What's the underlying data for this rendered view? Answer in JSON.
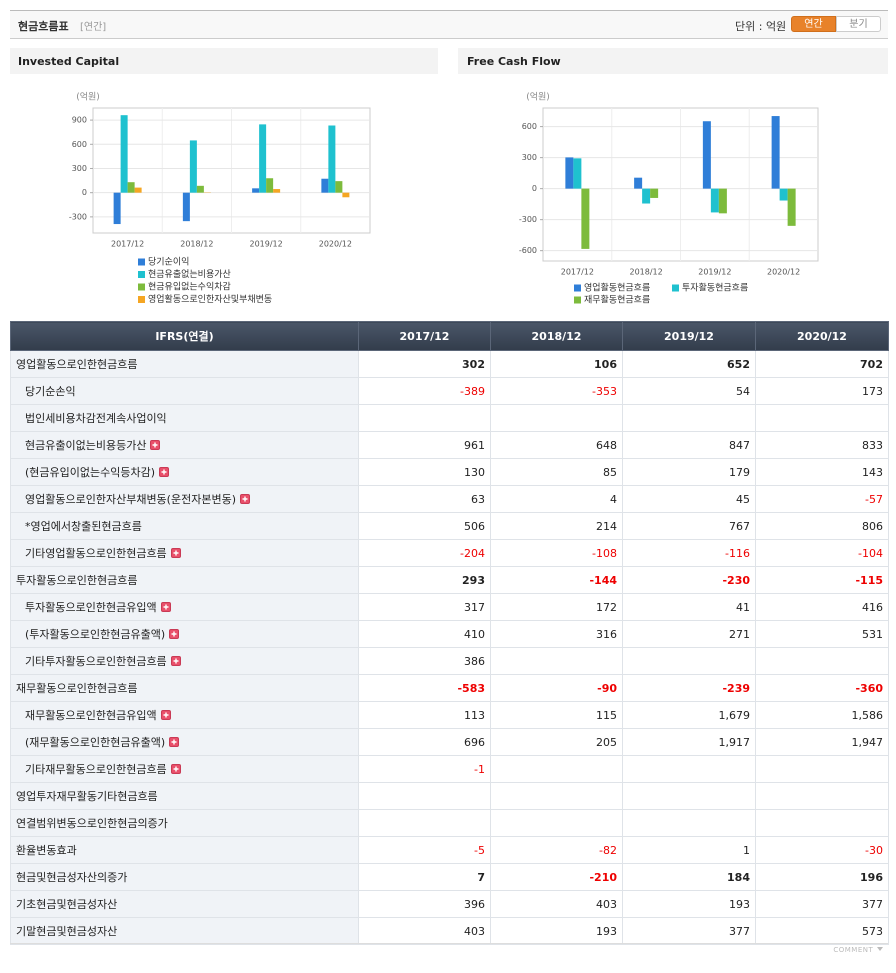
{
  "header": {
    "title": "현금흐름표",
    "period": "[연간]",
    "unit": "단위 : 억원",
    "tabs": [
      "연간",
      "분기"
    ]
  },
  "chart_data": [
    {
      "type": "bar",
      "title": "Invested Capital",
      "y_label": "(억원)",
      "categories": [
        "2017/12",
        "2018/12",
        "2019/12",
        "2020/12"
      ],
      "series": [
        {
          "name": "당기순이익",
          "color": "#2f7ed8",
          "values": [
            -389,
            -353,
            54,
            173
          ]
        },
        {
          "name": "현금유출없는비용가산",
          "color": "#1fc1cf",
          "values": [
            961,
            648,
            847,
            833
          ]
        },
        {
          "name": "현금유입없는수익차감",
          "color": "#7dbb3c",
          "values": [
            130,
            85,
            179,
            143
          ]
        },
        {
          "name": "영업활동으로인한자산및부채변동",
          "color": "#f5a623",
          "values": [
            63,
            4,
            45,
            -57
          ]
        }
      ],
      "ylim": [
        -500,
        1050
      ],
      "yticks": [
        900,
        600,
        300,
        0,
        -300
      ],
      "grid": true,
      "legend": "bottom"
    },
    {
      "type": "bar",
      "title": "Free Cash Flow",
      "y_label": "(억원)",
      "categories": [
        "2017/12",
        "2018/12",
        "2019/12",
        "2020/12"
      ],
      "series": [
        {
          "name": "영업활동현금흐름",
          "color": "#2f7ed8",
          "values": [
            302,
            106,
            652,
            702
          ]
        },
        {
          "name": "투자활동현금흐름",
          "color": "#1fc1cf",
          "values": [
            293,
            -144,
            -230,
            -115
          ]
        },
        {
          "name": "재무활동현금흐름",
          "color": "#7dbb3c",
          "values": [
            -583,
            -90,
            -239,
            -360
          ]
        }
      ],
      "ylim": [
        -700,
        780
      ],
      "yticks": [
        600,
        300,
        0,
        -300,
        -600
      ],
      "grid": true,
      "legend": "bottom"
    }
  ],
  "table": {
    "columns": [
      "IFRS(연결)",
      "2017/12",
      "2018/12",
      "2019/12",
      "2020/12"
    ],
    "rows": [
      {
        "label": "영업활동으로인한현금흐름",
        "values": [
          "302",
          "106",
          "652",
          "702"
        ],
        "bold": true,
        "indent": false,
        "expandable": false
      },
      {
        "label": "당기순손익",
        "values": [
          "-389",
          "-353",
          "54",
          "173"
        ],
        "bold": false,
        "indent": true,
        "expandable": false
      },
      {
        "label": "법인세비용차감전계속사업이익",
        "values": [
          null,
          null,
          null,
          null
        ],
        "bold": false,
        "indent": true,
        "expandable": false
      },
      {
        "label": "현금유출이없는비용등가산",
        "values": [
          "961",
          "648",
          "847",
          "833"
        ],
        "bold": false,
        "indent": true,
        "expandable": true
      },
      {
        "label": "(현금유입이없는수익등차감)",
        "values": [
          "130",
          "85",
          "179",
          "143"
        ],
        "bold": false,
        "indent": true,
        "expandable": true
      },
      {
        "label": "영업활동으로인한자산부채변동(운전자본변동)",
        "values": [
          "63",
          "4",
          "45",
          "-57"
        ],
        "bold": false,
        "indent": true,
        "expandable": true
      },
      {
        "label": "*영업에서창출된현금흐름",
        "values": [
          "506",
          "214",
          "767",
          "806"
        ],
        "bold": false,
        "indent": true,
        "expandable": false
      },
      {
        "label": "기타영업활동으로인한현금흐름",
        "values": [
          "-204",
          "-108",
          "-116",
          "-104"
        ],
        "bold": false,
        "indent": true,
        "expandable": true
      },
      {
        "label": "투자활동으로인한현금흐름",
        "values": [
          "293",
          "-144",
          "-230",
          "-115"
        ],
        "bold": true,
        "indent": false,
        "expandable": false
      },
      {
        "label": "투자활동으로인한현금유입액",
        "values": [
          "317",
          "172",
          "41",
          "416"
        ],
        "bold": false,
        "indent": true,
        "expandable": true
      },
      {
        "label": "(투자활동으로인한현금유출액)",
        "values": [
          "410",
          "316",
          "271",
          "531"
        ],
        "bold": false,
        "indent": true,
        "expandable": true
      },
      {
        "label": "기타투자활동으로인한현금흐름",
        "values": [
          "386",
          null,
          null,
          null
        ],
        "bold": false,
        "indent": true,
        "expandable": true
      },
      {
        "label": "재무활동으로인한현금흐름",
        "values": [
          "-583",
          "-90",
          "-239",
          "-360"
        ],
        "bold": true,
        "indent": false,
        "expandable": false
      },
      {
        "label": "재무활동으로인한현금유입액",
        "values": [
          "113",
          "115",
          "1,679",
          "1,586"
        ],
        "bold": false,
        "indent": true,
        "expandable": true
      },
      {
        "label": "(재무활동으로인한현금유출액)",
        "values": [
          "696",
          "205",
          "1,917",
          "1,947"
        ],
        "bold": false,
        "indent": true,
        "expandable": true
      },
      {
        "label": "기타재무활동으로인한현금흐름",
        "values": [
          "-1",
          null,
          null,
          null
        ],
        "bold": false,
        "indent": true,
        "expandable": true
      },
      {
        "label": "영업투자재무활동기타현금흐름",
        "values": [
          null,
          null,
          null,
          null
        ],
        "bold": false,
        "indent": false,
        "expandable": false
      },
      {
        "label": "연결범위변동으로인한현금의증가",
        "values": [
          null,
          null,
          null,
          null
        ],
        "bold": false,
        "indent": false,
        "expandable": false
      },
      {
        "label": "환율변동효과",
        "values": [
          "-5",
          "-82",
          "1",
          "-30"
        ],
        "bold": false,
        "indent": false,
        "expandable": false
      },
      {
        "label": "현금및현금성자산의증가",
        "values": [
          "7",
          "-210",
          "184",
          "196"
        ],
        "bold": true,
        "indent": false,
        "expandable": false
      },
      {
        "label": "기초현금및현금성자산",
        "values": [
          "396",
          "403",
          "193",
          "377"
        ],
        "bold": false,
        "indent": false,
        "expandable": false
      },
      {
        "label": "기말현금및현금성자산",
        "values": [
          "403",
          "193",
          "377",
          "573"
        ],
        "bold": false,
        "indent": false,
        "expandable": false
      }
    ]
  },
  "footer": "COMMENT"
}
